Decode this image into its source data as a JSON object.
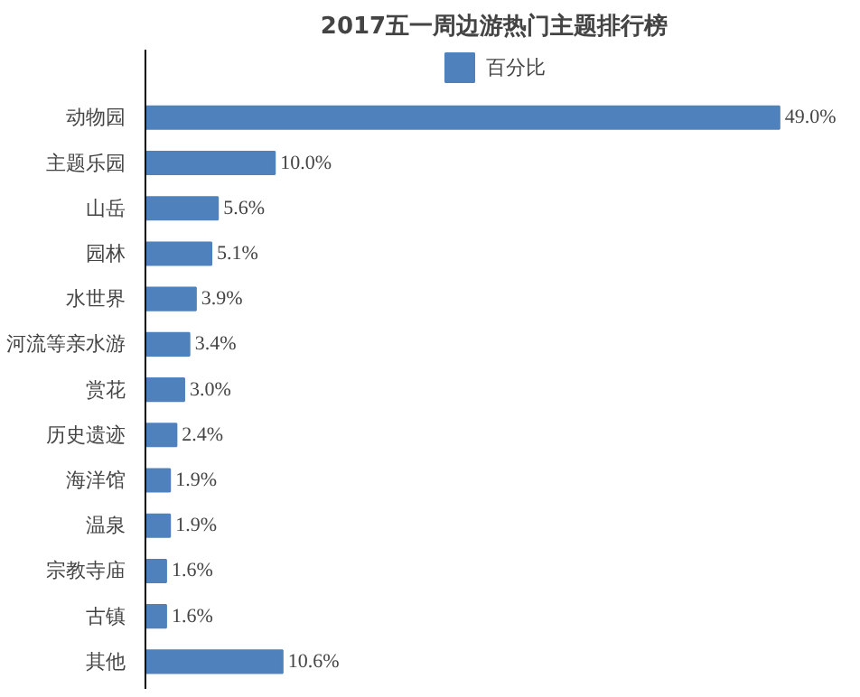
{
  "chart_data": {
    "type": "bar",
    "orientation": "horizontal",
    "title": "2017五一周边游热门主题排行榜",
    "categories": [
      "动物园",
      "主题乐园",
      "山岳",
      "园林",
      "水世界",
      "河流等亲水游",
      "赏花",
      "历史遗迹",
      "海洋馆",
      "温泉",
      "宗教寺庙",
      "古镇",
      "其他"
    ],
    "series": [
      {
        "name": "百分比",
        "color": "#4f81bd",
        "values": [
          49.0,
          10.0,
          5.6,
          5.1,
          3.9,
          3.4,
          3.0,
          2.4,
          1.9,
          1.9,
          1.6,
          1.6,
          10.6
        ],
        "value_labels": [
          "49.0%",
          "10.0%",
          "5.6%",
          "5.1%",
          "3.9%",
          "3.4%",
          "3.0%",
          "2.4%",
          "1.9%",
          "1.9%",
          "1.6%",
          "1.6%",
          "10.6%"
        ]
      }
    ],
    "tick_labels": "y",
    "grid": false,
    "legend": "top"
  }
}
